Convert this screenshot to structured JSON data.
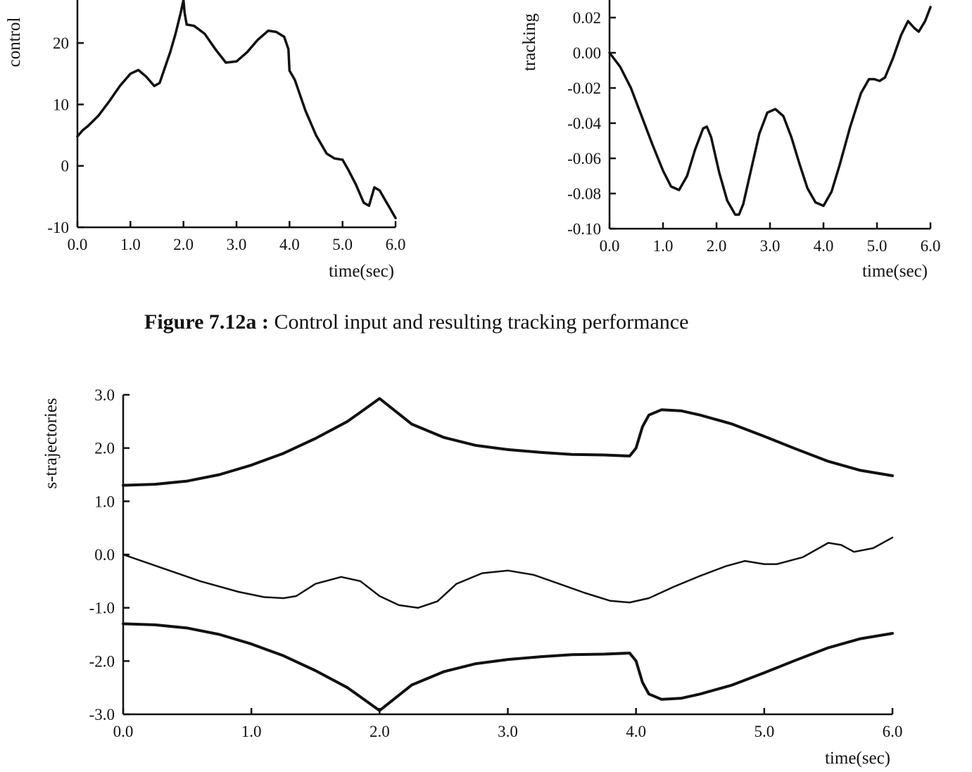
{
  "caption": {
    "bold": "Figure 7.12a :",
    "text": " Control input and resulting tracking performance"
  },
  "chart_data": [
    {
      "id": "control",
      "type": "line",
      "xlabel": "time(sec)",
      "ylabel": "control",
      "xlim": [
        0,
        6
      ],
      "ylim": [
        -10,
        27
      ],
      "xticks": [
        "0.0",
        "1.0",
        "2.0",
        "3.0",
        "4.0",
        "5.0",
        "6.0"
      ],
      "yticks": [
        "-10",
        "0",
        "10",
        "20"
      ],
      "grid": false,
      "series": [
        {
          "x": [
            0.0,
            0.1,
            0.2,
            0.4,
            0.6,
            0.8,
            1.0,
            1.15,
            1.3,
            1.45,
            1.55,
            1.65,
            1.75,
            1.85,
            1.95,
            2.0,
            2.02,
            2.06,
            2.2,
            2.4,
            2.6,
            2.8,
            3.0,
            3.2,
            3.4,
            3.6,
            3.75,
            3.9,
            3.98,
            4.0,
            4.1,
            4.3,
            4.5,
            4.7,
            4.85,
            5.0,
            5.1,
            5.25,
            5.4,
            5.5,
            5.6,
            5.7,
            5.8,
            5.9,
            6.0
          ],
          "values": [
            4.8,
            5.8,
            6.5,
            8.2,
            10.5,
            13.0,
            15.0,
            15.6,
            14.5,
            13.0,
            13.5,
            16.0,
            18.5,
            21.5,
            25.0,
            27.0,
            25.0,
            23.0,
            22.8,
            21.5,
            19.0,
            16.8,
            17.0,
            18.5,
            20.5,
            22.0,
            21.8,
            21.0,
            19.0,
            15.5,
            14.0,
            9.0,
            5.0,
            2.0,
            1.2,
            1.0,
            -0.5,
            -3.0,
            -6.0,
            -6.5,
            -3.5,
            -4.0,
            -5.5,
            -7.0,
            -8.5
          ]
        }
      ]
    },
    {
      "id": "tracking",
      "type": "line",
      "xlabel": "time(sec)",
      "ylabel": "tracking",
      "xlim": [
        0,
        6
      ],
      "ylim": [
        -0.1,
        0.03
      ],
      "xticks": [
        "0.0",
        "1.0",
        "2.0",
        "3.0",
        "4.0",
        "5.0",
        "6.0"
      ],
      "yticks": [
        "-0.10",
        "-0.08",
        "-0.06",
        "-0.04",
        "-0.02",
        "0.00",
        "0.02"
      ],
      "grid": false,
      "series": [
        {
          "x": [
            0.0,
            0.2,
            0.4,
            0.6,
            0.8,
            1.0,
            1.15,
            1.3,
            1.45,
            1.6,
            1.75,
            1.82,
            1.9,
            2.05,
            2.2,
            2.35,
            2.42,
            2.5,
            2.65,
            2.8,
            2.95,
            3.1,
            3.25,
            3.4,
            3.55,
            3.7,
            3.85,
            4.0,
            4.15,
            4.3,
            4.5,
            4.7,
            4.85,
            4.95,
            5.05,
            5.15,
            5.3,
            5.45,
            5.58,
            5.7,
            5.78,
            5.9,
            6.0
          ],
          "values": [
            0.0,
            -0.008,
            -0.02,
            -0.036,
            -0.052,
            -0.067,
            -0.076,
            -0.078,
            -0.07,
            -0.055,
            -0.043,
            -0.042,
            -0.048,
            -0.068,
            -0.084,
            -0.092,
            -0.092,
            -0.086,
            -0.066,
            -0.046,
            -0.034,
            -0.032,
            -0.036,
            -0.048,
            -0.063,
            -0.077,
            -0.085,
            -0.087,
            -0.079,
            -0.064,
            -0.042,
            -0.023,
            -0.015,
            -0.015,
            -0.016,
            -0.014,
            -0.003,
            0.01,
            0.018,
            0.014,
            0.012,
            0.018,
            0.026
          ]
        }
      ]
    },
    {
      "id": "s-trajectories",
      "type": "line",
      "xlabel": "time(sec)",
      "ylabel": "s-trajectories",
      "xlim": [
        0,
        6
      ],
      "ylim": [
        -3,
        3
      ],
      "xticks": [
        "0.0",
        "1.0",
        "2.0",
        "3.0",
        "4.0",
        "5.0",
        "6.0"
      ],
      "yticks": [
        "3.0",
        "2.0",
        "1.0",
        "0.0",
        "-1.0",
        "-2.0",
        "-3.0"
      ],
      "grid": false,
      "series": [
        {
          "x": [
            0.0,
            0.25,
            0.5,
            0.75,
            1.0,
            1.25,
            1.5,
            1.75,
            2.0,
            2.25,
            2.5,
            2.75,
            3.0,
            3.25,
            3.5,
            3.75,
            3.95,
            4.0,
            4.05,
            4.1,
            4.2,
            4.35,
            4.5,
            4.75,
            5.0,
            5.25,
            5.5,
            5.75,
            6.0
          ],
          "values": [
            1.3,
            1.32,
            1.38,
            1.5,
            1.68,
            1.9,
            2.18,
            2.5,
            2.93,
            2.45,
            2.2,
            2.05,
            1.97,
            1.92,
            1.88,
            1.87,
            1.85,
            2.0,
            2.4,
            2.62,
            2.72,
            2.7,
            2.62,
            2.45,
            2.22,
            1.98,
            1.75,
            1.58,
            1.48
          ]
        },
        {
          "x": [
            0.0,
            0.3,
            0.6,
            0.9,
            1.1,
            1.25,
            1.35,
            1.5,
            1.7,
            1.85,
            2.0,
            2.15,
            2.3,
            2.45,
            2.6,
            2.8,
            3.0,
            3.2,
            3.4,
            3.6,
            3.8,
            3.95,
            4.1,
            4.3,
            4.5,
            4.7,
            4.85,
            5.0,
            5.1,
            5.3,
            5.5,
            5.6,
            5.7,
            5.85,
            6.0
          ],
          "values": [
            0.0,
            -0.25,
            -0.5,
            -0.7,
            -0.8,
            -0.82,
            -0.78,
            -0.55,
            -0.42,
            -0.5,
            -0.78,
            -0.95,
            -1.0,
            -0.88,
            -0.55,
            -0.35,
            -0.3,
            -0.38,
            -0.55,
            -0.72,
            -0.87,
            -0.9,
            -0.82,
            -0.6,
            -0.4,
            -0.22,
            -0.12,
            -0.18,
            -0.18,
            -0.05,
            0.22,
            0.18,
            0.05,
            0.12,
            0.32
          ]
        },
        {
          "x": [
            0.0,
            0.25,
            0.5,
            0.75,
            1.0,
            1.25,
            1.5,
            1.75,
            2.0,
            2.25,
            2.5,
            2.75,
            3.0,
            3.25,
            3.5,
            3.75,
            3.95,
            4.0,
            4.05,
            4.1,
            4.2,
            4.35,
            4.5,
            4.75,
            5.0,
            5.25,
            5.5,
            5.75,
            6.0
          ],
          "values": [
            -1.3,
            -1.32,
            -1.38,
            -1.5,
            -1.68,
            -1.9,
            -2.18,
            -2.5,
            -2.93,
            -2.45,
            -2.2,
            -2.05,
            -1.97,
            -1.92,
            -1.88,
            -1.87,
            -1.85,
            -2.0,
            -2.4,
            -2.62,
            -2.72,
            -2.7,
            -2.62,
            -2.45,
            -2.22,
            -1.98,
            -1.75,
            -1.58,
            -1.48
          ]
        }
      ]
    }
  ]
}
